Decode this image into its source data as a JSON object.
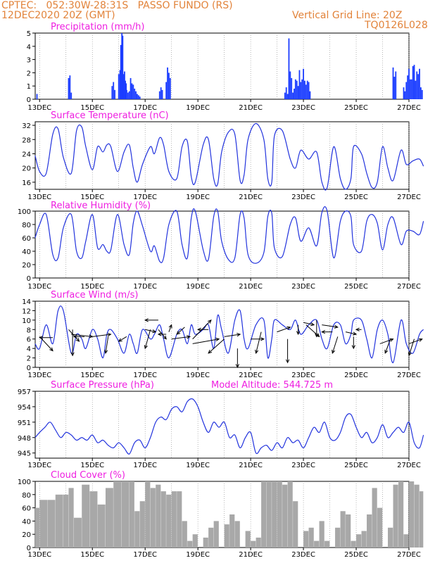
{
  "header": {
    "left_line1": "CPTEC:   052:30W-28:31S   PASSO FUNDO (RS)",
    "left_line2": "12DEC2020 20Z (GMT)",
    "right_line1": "Vertical Grid Line: 20Z",
    "right_line2": "TQ0126L028"
  },
  "colors": {
    "header": "#e2833a",
    "title": "#ee1ee0",
    "line": "#2233dd",
    "bar": "#1a3cff",
    "cloud": "#a8a8a8"
  },
  "x_axis": {
    "start": "12DEC2020 20Z",
    "end": "27DEC2020",
    "ticks": [
      "13DEC",
      "15DEC",
      "17DEC",
      "19DEC",
      "21DEC",
      "23DEC",
      "25DEC",
      "27DEC"
    ]
  },
  "chart_data": [
    {
      "type": "bar",
      "title": "Precipitation (mm/h)",
      "ylim": [
        0,
        5
      ],
      "yticks": [
        0,
        1,
        2,
        3,
        4,
        5
      ],
      "x": [
        12.9,
        14.1,
        14.15,
        14.2,
        15.75,
        15.8,
        15.85,
        16.0,
        16.05,
        16.08,
        16.12,
        16.15,
        16.18,
        16.22,
        16.25,
        16.28,
        16.3,
        16.35,
        16.4,
        16.45,
        16.5,
        16.55,
        16.6,
        16.65,
        16.7,
        16.75,
        16.8,
        17.55,
        17.6,
        17.65,
        17.8,
        17.85,
        17.9,
        17.95,
        22.3,
        22.35,
        22.4,
        22.45,
        22.5,
        22.55,
        22.6,
        22.65,
        22.7,
        22.75,
        22.8,
        22.85,
        22.9,
        22.95,
        23.0,
        23.05,
        23.1,
        23.15,
        23.2,
        23.25,
        26.4,
        26.45,
        26.5,
        26.8,
        26.85,
        26.9,
        26.95,
        27.0,
        27.05,
        27.1,
        27.15,
        27.2,
        27.25,
        27.3,
        27.35,
        27.4,
        27.45,
        27.5
      ],
      "values": [
        0.4,
        1.6,
        1.8,
        0.5,
        1.0,
        1.3,
        0.7,
        1.9,
        2.2,
        4.1,
        5.0,
        4.8,
        1.9,
        2.1,
        1.4,
        1.2,
        0.7,
        0.5,
        0.6,
        1.6,
        1.2,
        1.1,
        0.8,
        0.6,
        0.4,
        0.3,
        0.2,
        0.6,
        0.9,
        0.7,
        1.3,
        2.4,
        2.0,
        1.6,
        0.5,
        0.9,
        0.4,
        4.6,
        2.1,
        1.6,
        0.5,
        0.8,
        1.5,
        1.4,
        1.0,
        2.2,
        1.3,
        1.5,
        2.3,
        1.4,
        1.1,
        1.4,
        1.3,
        0.6,
        2.4,
        1.7,
        2.1,
        0.9,
        0.6,
        1.3,
        1.8,
        2.3,
        1.5,
        1.5,
        2.5,
        2.6,
        1.4,
        2.1,
        1.9,
        2.3,
        0.9,
        0.7
      ]
    },
    {
      "type": "line",
      "title": "Surface Temperature (nC)",
      "ylim": [
        14,
        33
      ],
      "yticks": [
        16,
        20,
        24,
        28,
        32
      ],
      "x": [
        12.83,
        13.0,
        13.25,
        13.5,
        13.7,
        13.9,
        14.2,
        14.4,
        14.6,
        14.75,
        15.0,
        15.2,
        15.4,
        15.55,
        15.7,
        15.95,
        16.2,
        16.4,
        16.55,
        16.7,
        16.9,
        17.2,
        17.35,
        17.55,
        17.7,
        17.9,
        18.2,
        18.4,
        18.6,
        18.75,
        18.9,
        19.2,
        19.4,
        19.6,
        19.75,
        19.9,
        20.15,
        20.4,
        20.6,
        20.75,
        20.9,
        21.2,
        21.5,
        21.65,
        21.8,
        21.9,
        22.2,
        22.5,
        22.7,
        22.9,
        23.2,
        23.5,
        23.7,
        23.9,
        24.15,
        24.4,
        24.6,
        24.8,
        24.9,
        25.2,
        25.4,
        25.6,
        25.8,
        26.0,
        26.2,
        26.4,
        26.7,
        26.9,
        27.15,
        27.4,
        27.55
      ],
      "values": [
        23.5,
        19,
        18.5,
        29.5,
        31,
        23,
        18.5,
        30.5,
        31.5,
        26,
        19.5,
        26,
        24.5,
        26.5,
        26,
        19,
        24.5,
        26.5,
        20,
        16,
        21,
        26,
        24,
        28.5,
        26.5,
        19,
        17,
        26,
        27.5,
        17.5,
        16,
        26.5,
        28,
        17,
        15.5,
        24.5,
        30,
        29.5,
        16.5,
        18,
        28,
        32.5,
        28,
        17,
        16,
        29,
        30.5,
        22.5,
        20,
        25,
        22.5,
        24.5,
        16,
        14.5,
        26,
        17,
        14,
        17,
        26,
        24,
        18.5,
        14.5,
        16,
        26,
        20,
        16.5,
        25,
        21,
        22,
        22.5,
        20.5
      ]
    },
    {
      "type": "line",
      "title": "Relative Humidity (%)",
      "ylim": [
        0,
        100
      ],
      "yticks": [
        0,
        20,
        40,
        60,
        80,
        100
      ],
      "x": [
        12.83,
        13.0,
        13.25,
        13.5,
        13.7,
        13.9,
        14.2,
        14.4,
        14.6,
        14.75,
        15.0,
        15.2,
        15.4,
        15.55,
        15.7,
        15.95,
        16.2,
        16.4,
        16.55,
        16.7,
        16.9,
        17.2,
        17.35,
        17.55,
        17.7,
        17.9,
        18.2,
        18.4,
        18.6,
        18.75,
        18.9,
        19.2,
        19.4,
        19.6,
        19.75,
        19.9,
        20.15,
        20.4,
        20.6,
        20.75,
        20.9,
        21.2,
        21.5,
        21.65,
        21.8,
        21.9,
        22.2,
        22.5,
        22.7,
        22.9,
        23.2,
        23.5,
        23.7,
        23.9,
        24.15,
        24.4,
        24.6,
        24.8,
        24.9,
        25.2,
        25.4,
        25.6,
        25.8,
        26.0,
        26.2,
        26.4,
        26.7,
        26.9,
        27.15,
        27.4,
        27.55
      ],
      "values": [
        60,
        80,
        95,
        35,
        30,
        75,
        95,
        40,
        30,
        55,
        95,
        45,
        50,
        40,
        42,
        95,
        50,
        35,
        82,
        100,
        78,
        40,
        48,
        25,
        30,
        80,
        100,
        50,
        30,
        90,
        100,
        42,
        28,
        92,
        100,
        55,
        28,
        30,
        95,
        90,
        35,
        22,
        38,
        92,
        97,
        45,
        32,
        80,
        90,
        55,
        75,
        48,
        98,
        100,
        30,
        85,
        100,
        92,
        50,
        40,
        85,
        95,
        82,
        42,
        80,
        90,
        50,
        70,
        70,
        65,
        85
      ]
    },
    {
      "type": "line",
      "title": "Surface Wind (m/s)",
      "ylim": [
        0,
        14
      ],
      "yticks": [
        0,
        2,
        4,
        6,
        8,
        10,
        12,
        14
      ],
      "x": [
        12.83,
        13.0,
        13.25,
        13.5,
        13.7,
        13.9,
        14.2,
        14.4,
        14.6,
        14.75,
        15.0,
        15.2,
        15.4,
        15.55,
        15.7,
        15.95,
        16.2,
        16.4,
        16.55,
        16.7,
        16.9,
        17.2,
        17.35,
        17.55,
        17.7,
        17.9,
        18.2,
        18.4,
        18.6,
        18.75,
        18.9,
        19.2,
        19.4,
        19.6,
        19.75,
        19.9,
        20.15,
        20.4,
        20.6,
        20.75,
        20.9,
        21.2,
        21.5,
        21.65,
        21.8,
        21.9,
        22.2,
        22.5,
        22.7,
        22.9,
        23.2,
        23.5,
        23.7,
        23.9,
        24.15,
        24.4,
        24.6,
        24.8,
        24.9,
        25.2,
        25.4,
        25.6,
        25.8,
        26.0,
        26.2,
        26.4,
        26.7,
        26.9,
        27.15,
        27.4,
        27.55
      ],
      "values": [
        5,
        4,
        9,
        5,
        12,
        12,
        3,
        7,
        6,
        4,
        8,
        6,
        2,
        7,
        8,
        6,
        3,
        7,
        5,
        3,
        8,
        6,
        7,
        9,
        6,
        2,
        7,
        8,
        5,
        9,
        7,
        8,
        9,
        4,
        11,
        8,
        3,
        10,
        12,
        6,
        4,
        9,
        10,
        2,
        6,
        10,
        9,
        8,
        10,
        7,
        9,
        10,
        6,
        4,
        9,
        9,
        5,
        7,
        10,
        10,
        6,
        2,
        8,
        10,
        7,
        1,
        10,
        5,
        3,
        7,
        8
      ],
      "vectors": [
        [
          13.0,
          6.5,
          13.5,
          3.5
        ],
        [
          13.5,
          6.3,
          13.0,
          6.3
        ],
        [
          14.1,
          8.0,
          14.5,
          5.5
        ],
        [
          14.25,
          8.0,
          14.25,
          2.5
        ],
        [
          14.2,
          7.0,
          15.0,
          6.5
        ],
        [
          14.7,
          6.5,
          14.3,
          6.5
        ],
        [
          15.0,
          6.5,
          15.7,
          7.0
        ],
        [
          15.6,
          6.5,
          15.5,
          3.0
        ],
        [
          16.3,
          6.5,
          16.0,
          5.5
        ],
        [
          17.0,
          8.0,
          17.4,
          7.5
        ],
        [
          17.2,
          8.0,
          17.0,
          4.0
        ],
        [
          17.5,
          10.0,
          17.0,
          10.0
        ],
        [
          17.8,
          7.0,
          17.5,
          7.0
        ],
        [
          17.9,
          7.5,
          18.0,
          9.0
        ],
        [
          17.5,
          8.0,
          17.8,
          6.0
        ],
        [
          18.0,
          6.0,
          18.7,
          6.5
        ],
        [
          18.5,
          8.5,
          18.2,
          7.0
        ],
        [
          18.8,
          6.0,
          19.5,
          10.0
        ],
        [
          18.8,
          5.0,
          19.8,
          6.0
        ],
        [
          19.4,
          8.0,
          19.0,
          8.0
        ],
        [
          20.0,
          6.5,
          20.6,
          7.0
        ],
        [
          20.0,
          6.0,
          19.4,
          3.0
        ],
        [
          20.5,
          4.0,
          20.5,
          0.0
        ],
        [
          21.0,
          6.0,
          21.5,
          6.0
        ],
        [
          21.4,
          7.5,
          21.2,
          3.0
        ],
        [
          22.0,
          7.5,
          22.5,
          8.5
        ],
        [
          22.4,
          6.0,
          22.4,
          1.0
        ],
        [
          22.8,
          9.0,
          22.8,
          7.0
        ],
        [
          23.0,
          9.5,
          23.4,
          9.0
        ],
        [
          23.1,
          9.0,
          23.6,
          6.5
        ],
        [
          23.5,
          10.0,
          23.5,
          6.5
        ],
        [
          23.7,
          9.0,
          24.3,
          8.5
        ],
        [
          24.1,
          7.5,
          23.7,
          7.5
        ],
        [
          24.3,
          6.5,
          24.1,
          3.0
        ],
        [
          24.6,
          7.5,
          25.0,
          7.0
        ],
        [
          24.9,
          6.5,
          24.9,
          4.0
        ],
        [
          25.2,
          8.0,
          25.0,
          8.0
        ],
        [
          25.9,
          5.0,
          26.4,
          6.0
        ],
        [
          26.3,
          6.0,
          26.1,
          3.0
        ],
        [
          27.0,
          5.0,
          27.5,
          6.0
        ],
        [
          27.2,
          6.0,
          27.0,
          2.5
        ]
      ]
    },
    {
      "type": "line",
      "title": "Surface Pressure (hPa)",
      "annotation": "Model Altitude: 544.725 m",
      "ylim": [
        944,
        957
      ],
      "yticks": [
        945,
        948,
        951,
        954,
        957
      ],
      "x": [
        12.83,
        13.0,
        13.2,
        13.4,
        13.6,
        13.8,
        14.0,
        14.2,
        14.4,
        14.6,
        14.8,
        15.0,
        15.2,
        15.4,
        15.6,
        15.8,
        16.0,
        16.2,
        16.4,
        16.6,
        16.8,
        17.0,
        17.2,
        17.4,
        17.6,
        17.8,
        18.0,
        18.2,
        18.4,
        18.6,
        18.8,
        19.0,
        19.2,
        19.4,
        19.6,
        19.8,
        20.0,
        20.2,
        20.4,
        20.6,
        20.8,
        21.0,
        21.2,
        21.4,
        21.6,
        21.8,
        22.0,
        22.2,
        22.4,
        22.6,
        22.8,
        23.0,
        23.2,
        23.4,
        23.6,
        23.8,
        24.0,
        24.2,
        24.4,
        24.6,
        24.8,
        25.0,
        25.2,
        25.4,
        25.6,
        25.8,
        26.0,
        26.2,
        26.4,
        26.6,
        26.8,
        27.0,
        27.2,
        27.4,
        27.55
      ],
      "values": [
        948,
        949,
        950,
        951,
        949.5,
        948,
        949,
        948.5,
        947.5,
        948,
        947.5,
        948.5,
        947,
        947.5,
        946.5,
        946,
        947,
        946,
        944.8,
        947,
        947.5,
        946,
        948,
        951,
        952,
        951.5,
        953.5,
        954,
        953,
        955,
        955.5,
        954,
        951,
        949,
        951,
        950,
        951,
        948,
        948.5,
        946,
        948,
        949,
        945,
        946,
        946.5,
        945.5,
        947,
        946,
        948,
        947,
        947.5,
        946,
        948,
        950,
        949,
        951,
        948,
        947.5,
        949,
        952,
        952.5,
        950,
        948,
        949,
        947,
        948,
        950.5,
        948,
        949,
        950,
        949,
        951,
        947,
        946,
        948.5
      ]
    },
    {
      "type": "area",
      "title": "Cloud Cover (%)",
      "ylim": [
        0,
        100
      ],
      "yticks": [
        0,
        20,
        40,
        60,
        80,
        100
      ],
      "x": [
        12.83,
        13.0,
        13.3,
        13.6,
        13.9,
        14.1,
        14.3,
        14.6,
        14.9,
        15.2,
        15.5,
        15.8,
        16.1,
        16.4,
        16.6,
        16.8,
        17.0,
        17.2,
        17.4,
        17.6,
        17.8,
        18.0,
        18.2,
        18.4,
        18.6,
        18.8,
        19.0,
        19.2,
        19.4,
        19.6,
        19.8,
        20.0,
        20.2,
        20.4,
        20.6,
        20.8,
        21.0,
        21.2,
        21.4,
        21.6,
        21.8,
        22.0,
        22.2,
        22.4,
        22.6,
        22.8,
        23.0,
        23.2,
        23.4,
        23.6,
        23.8,
        24.0,
        24.2,
        24.4,
        24.6,
        24.8,
        25.0,
        25.2,
        25.4,
        25.6,
        25.8,
        26.0,
        26.2,
        26.4,
        26.6,
        26.8,
        27.0,
        27.2,
        27.4,
        27.55
      ],
      "values": [
        60,
        72,
        72,
        80,
        80,
        90,
        45,
        95,
        85,
        65,
        90,
        100,
        100,
        100,
        55,
        70,
        100,
        90,
        95,
        85,
        80,
        85,
        85,
        40,
        10,
        20,
        0,
        15,
        30,
        40,
        0,
        35,
        50,
        40,
        0,
        25,
        10,
        15,
        100,
        100,
        100,
        100,
        95,
        100,
        70,
        0,
        25,
        30,
        10,
        40,
        10,
        0,
        30,
        55,
        50,
        10,
        20,
        25,
        50,
        90,
        60,
        0,
        30,
        95,
        100,
        20,
        100,
        95,
        85,
        100
      ]
    }
  ]
}
